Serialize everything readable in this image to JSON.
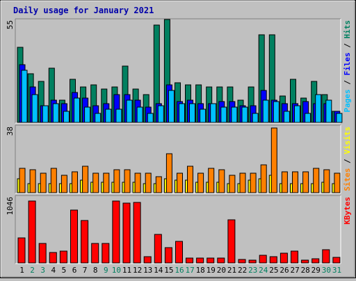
{
  "title": "Daily usage for January 2021",
  "colors": {
    "background": "#c0c0c0",
    "title": "#0000aa",
    "hits": "#008060",
    "files": "#0000ff",
    "pages": "#00c0ff",
    "visits": "#ffff00",
    "sites": "#ff8000",
    "kbytes": "#ff0000",
    "weekend_label": "#008060",
    "weekday_label": "#000000"
  },
  "chart_data": {
    "type": "bar",
    "categories": [
      "1",
      "2",
      "3",
      "4",
      "5",
      "6",
      "7",
      "8",
      "9",
      "10",
      "11",
      "12",
      "13",
      "14",
      "15",
      "16",
      "17",
      "18",
      "19",
      "20",
      "21",
      "22",
      "23",
      "24",
      "25",
      "26",
      "27",
      "28",
      "29",
      "30",
      "31"
    ],
    "weekend_days": [
      "2",
      "3",
      "9",
      "10",
      "16",
      "17",
      "23",
      "24",
      "30",
      "31"
    ],
    "panels": [
      {
        "id": "hits-files-pages",
        "ymax_label": "55",
        "ylim": [
          0,
          55
        ],
        "legend": [
          {
            "text": "Pages",
            "color": "#00c0ff"
          },
          {
            "text": " / ",
            "color": "#000000"
          },
          {
            "text": "Files",
            "color": "#0000ff"
          },
          {
            "text": " / ",
            "color": "#000000"
          },
          {
            "text": "Hits",
            "color": "#008060"
          }
        ],
        "series": [
          {
            "name": "Hits",
            "color": "#008060",
            "values": [
              40,
              26,
              22,
              29,
              12,
              23,
              19,
              20,
              18,
              19,
              30,
              18,
              15,
              52,
              55,
              21,
              20,
              20,
              19,
              19,
              19,
              12,
              19,
              47,
              47,
              14,
              23,
              13,
              22,
              15,
              6
            ]
          },
          {
            "name": "Files",
            "color": "#0000ff",
            "values": [
              31,
              19,
              9,
              12,
              10,
              16,
              13,
              9,
              10,
              15,
              15,
              12,
              8,
              10,
              20,
              11,
              12,
              10,
              10,
              11,
              11,
              9,
              9,
              17,
              12,
              10,
              10,
              11,
              10,
              10,
              6
            ]
          },
          {
            "name": "Pages",
            "color": "#00c0ff",
            "values": [
              28,
              15,
              9,
              10,
              6,
              13,
              8,
              5,
              7,
              7,
              12,
              8,
              5,
              9,
              17,
              10,
              10,
              7,
              10,
              8,
              8,
              8,
              5,
              12,
              11,
              6,
              9,
              5,
              15,
              12,
              5
            ]
          }
        ]
      },
      {
        "id": "sites-visits",
        "ymax_label": "38",
        "ylim": [
          0,
          38
        ],
        "legend": [
          {
            "text": "Sites",
            "color": "#ff8000"
          },
          {
            "text": " / ",
            "color": "#000000"
          },
          {
            "text": "Visits",
            "color": "#ffff00"
          }
        ],
        "series": [
          {
            "name": "Visits",
            "color": "#ffff00",
            "values": [
              8,
              5,
              5,
              5,
              5,
              5,
              7,
              6,
              6,
              6,
              6,
              6,
              5,
              5,
              8,
              7,
              7,
              6,
              6,
              6,
              5,
              5,
              7,
              8,
              10,
              5,
              5,
              5,
              5,
              6,
              5
            ]
          },
          {
            "name": "Sites",
            "color": "#ff8000",
            "values": [
              14,
              13,
              11,
              14,
              10,
              12,
              15,
              11,
              11,
              13,
              13,
              11,
              11,
              9,
              22,
              11,
              15,
              11,
              14,
              13,
              10,
              11,
              11,
              16,
              37,
              12,
              12,
              12,
              14,
              13,
              11
            ]
          }
        ]
      },
      {
        "id": "kbytes",
        "ymax_label": "1046",
        "ylim": [
          0,
          1046
        ],
        "legend": [
          {
            "text": "KBytes",
            "color": "#ff0000"
          }
        ],
        "series": [
          {
            "name": "KBytes",
            "color": "#ff0000",
            "values": [
              390,
              970,
              310,
              160,
              190,
              830,
              670,
              310,
              310,
              970,
              940,
              950,
              100,
              450,
              240,
              340,
              80,
              80,
              80,
              80,
              680,
              50,
              40,
              120,
              100,
              150,
              180,
              40,
              70,
              210,
              90
            ]
          }
        ]
      }
    ]
  }
}
